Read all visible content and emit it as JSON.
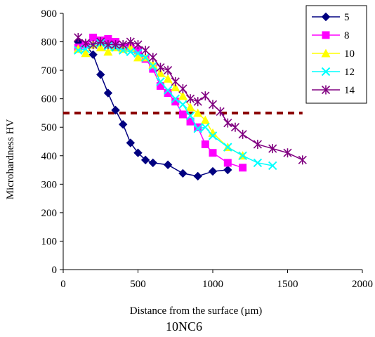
{
  "chart_data": {
    "type": "line",
    "title": "10NC6",
    "xlabel": "Distance from the surface (µm)",
    "ylabel": "Microhardness HV",
    "xlim": [
      0,
      2000
    ],
    "ylim": [
      0,
      900
    ],
    "x_ticks": [
      "0",
      "500",
      "1000",
      "1500",
      "2000"
    ],
    "y_ticks": [
      "0",
      "100",
      "200",
      "300",
      "400",
      "500",
      "600",
      "700",
      "800",
      "900"
    ],
    "grid": false,
    "legend_position": "top-right",
    "threshold": {
      "y": 550,
      "x_range": [
        0,
        1600
      ],
      "color": "#8B0000",
      "style": "dashed"
    },
    "series": [
      {
        "name": "5",
        "color": "#000080",
        "marker": "diamond",
        "x": [
          100,
          150,
          200,
          250,
          300,
          350,
          400,
          450,
          500,
          550,
          600,
          700,
          800,
          900,
          1000,
          1100
        ],
        "y": [
          800,
          790,
          755,
          685,
          620,
          560,
          510,
          445,
          410,
          385,
          375,
          368,
          338,
          328,
          345,
          350
        ]
      },
      {
        "name": "8",
        "color": "#FF00FF",
        "marker": "square",
        "x": [
          100,
          150,
          200,
          250,
          300,
          350,
          400,
          450,
          500,
          550,
          600,
          650,
          700,
          750,
          800,
          850,
          900,
          950,
          1000,
          1100,
          1200
        ],
        "y": [
          780,
          790,
          815,
          805,
          810,
          800,
          780,
          780,
          770,
          740,
          705,
          645,
          620,
          590,
          545,
          520,
          500,
          440,
          410,
          375,
          358
        ]
      },
      {
        "name": "10",
        "color": "#FFFF00",
        "marker": "triangle",
        "x": [
          100,
          150,
          200,
          250,
          300,
          350,
          400,
          450,
          500,
          550,
          600,
          650,
          700,
          750,
          800,
          850,
          900,
          950,
          1000,
          1100,
          1200
        ],
        "y": [
          775,
          760,
          790,
          780,
          765,
          780,
          775,
          780,
          745,
          745,
          720,
          690,
          670,
          640,
          610,
          570,
          550,
          525,
          480,
          430,
          400
        ]
      },
      {
        "name": "12",
        "color": "#00FFFF",
        "marker": "x",
        "x": [
          100,
          150,
          200,
          250,
          300,
          350,
          400,
          450,
          500,
          550,
          600,
          650,
          700,
          750,
          800,
          850,
          900,
          950,
          1000,
          1100,
          1200,
          1300,
          1400
        ],
        "y": [
          770,
          775,
          790,
          795,
          785,
          780,
          770,
          765,
          760,
          745,
          715,
          660,
          630,
          600,
          580,
          540,
          495,
          500,
          470,
          430,
          400,
          375,
          365
        ]
      },
      {
        "name": "14",
        "color": "#800080",
        "marker": "asterisk",
        "x": [
          100,
          150,
          200,
          250,
          300,
          350,
          400,
          450,
          500,
          550,
          600,
          650,
          700,
          750,
          800,
          850,
          900,
          950,
          1000,
          1050,
          1100,
          1150,
          1200,
          1300,
          1400,
          1500,
          1600
        ],
        "y": [
          815,
          795,
          790,
          800,
          790,
          790,
          790,
          800,
          790,
          770,
          745,
          710,
          700,
          660,
          635,
          600,
          590,
          610,
          580,
          555,
          515,
          500,
          475,
          440,
          425,
          410,
          385
        ]
      }
    ]
  }
}
